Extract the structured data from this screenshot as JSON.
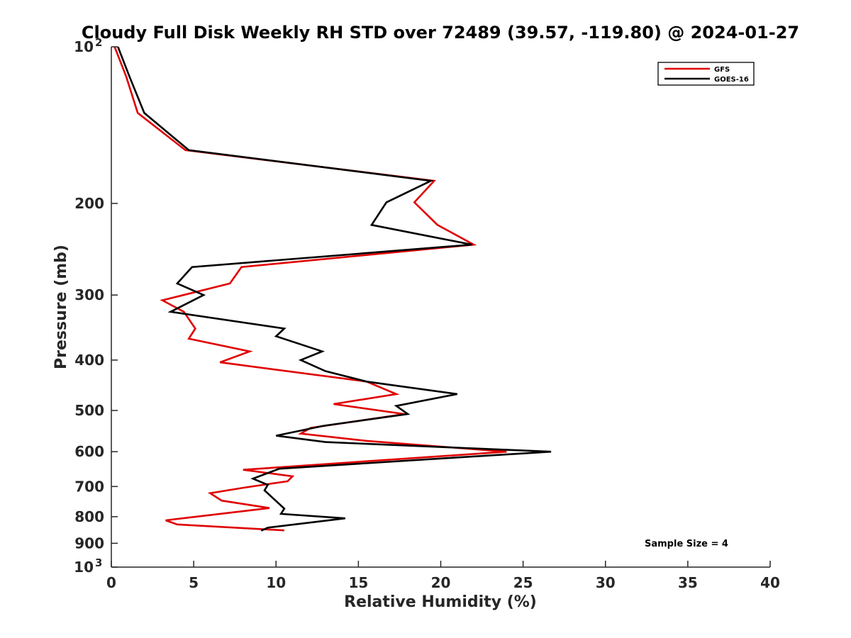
{
  "chart_data": {
    "type": "line",
    "title": "Cloudy Full Disk Weekly RH STD over 72489 (39.57, -119.80) @ 2024-01-27",
    "xlabel": "Relative Humidity (%)",
    "ylabel": "Pressure (mb)",
    "xlim": [
      0,
      40
    ],
    "ylim": [
      100,
      1000
    ],
    "y_scale": "log",
    "y_reversed": true,
    "grid": false,
    "legend_position": "top-right",
    "x_ticks": [
      "0",
      "5",
      "10",
      "15",
      "20",
      "25",
      "30",
      "35",
      "40"
    ],
    "y_ticks": [
      {
        "value": 100,
        "label": "10",
        "sup": "2"
      },
      {
        "value": 200,
        "label": "200",
        "sup": ""
      },
      {
        "value": 300,
        "label": "300",
        "sup": ""
      },
      {
        "value": 400,
        "label": "400",
        "sup": ""
      },
      {
        "value": 500,
        "label": "500",
        "sup": ""
      },
      {
        "value": 600,
        "label": "600",
        "sup": ""
      },
      {
        "value": 700,
        "label": "700",
        "sup": ""
      },
      {
        "value": 800,
        "label": "800",
        "sup": ""
      },
      {
        "value": 900,
        "label": "900",
        "sup": ""
      },
      {
        "value": 1000,
        "label": "10",
        "sup": "3"
      }
    ],
    "annotation": "Sample Size = 4",
    "series": [
      {
        "name": "GFS",
        "color": "#e00000",
        "points": [
          [
            0.2,
            100
          ],
          [
            0.9,
            114
          ],
          [
            1.6,
            134
          ],
          [
            4.5,
            158
          ],
          [
            19.6,
            181
          ],
          [
            18.4,
            199
          ],
          [
            19.8,
            220
          ],
          [
            22.0,
            240
          ],
          [
            7.9,
            265
          ],
          [
            7.2,
            285
          ],
          [
            3.1,
            307
          ],
          [
            4.4,
            323
          ],
          [
            5.1,
            348
          ],
          [
            4.7,
            364
          ],
          [
            8.4,
            385
          ],
          [
            6.6,
            404
          ],
          [
            15.5,
            440
          ],
          [
            17.3,
            465
          ],
          [
            13.5,
            486
          ],
          [
            17.8,
            508
          ],
          [
            12.1,
            540
          ],
          [
            11.5,
            554
          ],
          [
            15.5,
            572
          ],
          [
            24.0,
            600
          ],
          [
            8.0,
            650
          ],
          [
            11.0,
            669
          ],
          [
            10.7,
            684
          ],
          [
            8.0,
            704
          ],
          [
            6.0,
            721
          ],
          [
            6.7,
            745
          ],
          [
            9.6,
            770
          ],
          [
            3.3,
            813
          ],
          [
            4.0,
            828
          ],
          [
            10.5,
            850
          ]
        ]
      },
      {
        "name": "GOES-16",
        "color": "#000000",
        "points": [
          [
            0.4,
            100
          ],
          [
            1.1,
            114
          ],
          [
            2.0,
            134
          ],
          [
            4.7,
            158
          ],
          [
            19.4,
            181
          ],
          [
            16.7,
            199
          ],
          [
            15.8,
            220
          ],
          [
            21.9,
            240
          ],
          [
            4.9,
            265
          ],
          [
            4.0,
            285
          ],
          [
            5.6,
            300
          ],
          [
            3.6,
            323
          ],
          [
            10.5,
            348
          ],
          [
            10.0,
            360
          ],
          [
            12.8,
            385
          ],
          [
            11.5,
            400
          ],
          [
            13.0,
            420
          ],
          [
            15.5,
            440
          ],
          [
            21.0,
            465
          ],
          [
            17.3,
            490
          ],
          [
            18.0,
            508
          ],
          [
            12.9,
            535
          ],
          [
            10.0,
            559
          ],
          [
            13.0,
            575
          ],
          [
            26.7,
            600
          ],
          [
            20.5,
            617
          ],
          [
            10.2,
            647
          ],
          [
            8.6,
            676
          ],
          [
            9.5,
            695
          ],
          [
            9.3,
            712
          ],
          [
            10.5,
            772
          ],
          [
            10.3,
            790
          ],
          [
            14.2,
            806
          ],
          [
            9.5,
            840
          ],
          [
            9.1,
            851
          ]
        ]
      }
    ]
  }
}
